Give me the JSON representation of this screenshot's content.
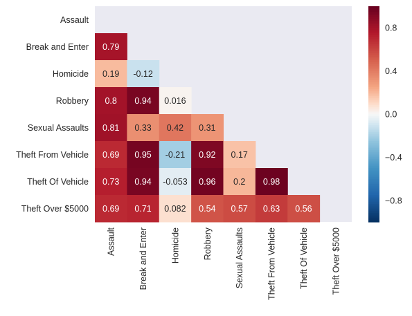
{
  "chart_data": {
    "type": "heatmap",
    "title": "",
    "xlabel": "",
    "ylabel": "",
    "mask": "upper-triangle-including-diagonal",
    "rows": [
      "Assault",
      "Break and Enter",
      "Homicide",
      "Robbery",
      "Sexual Assaults",
      "Theft From Vehicle",
      "Theft Of Vehicle",
      "Theft Over $5000"
    ],
    "columns": [
      "Assault",
      "Break and Enter",
      "Homicide",
      "Robbery",
      "Sexual Assaults",
      "Theft From Vehicle",
      "Theft Of Vehicle",
      "Theft Over $5000"
    ],
    "values": [
      [
        null,
        null,
        null,
        null,
        null,
        null,
        null,
        null
      ],
      [
        0.79,
        null,
        null,
        null,
        null,
        null,
        null,
        null
      ],
      [
        0.19,
        -0.12,
        null,
        null,
        null,
        null,
        null,
        null
      ],
      [
        0.8,
        0.94,
        0.016,
        null,
        null,
        null,
        null,
        null
      ],
      [
        0.81,
        0.33,
        0.42,
        0.31,
        null,
        null,
        null,
        null
      ],
      [
        0.69,
        0.95,
        -0.21,
        0.92,
        0.17,
        null,
        null,
        null
      ],
      [
        0.73,
        0.94,
        -0.053,
        0.96,
        0.2,
        0.98,
        null,
        null
      ],
      [
        0.69,
        0.71,
        0.082,
        0.54,
        0.57,
        0.63,
        0.56,
        null
      ]
    ],
    "labels": [
      [
        null,
        null,
        null,
        null,
        null,
        null,
        null,
        null
      ],
      [
        "0.79",
        null,
        null,
        null,
        null,
        null,
        null,
        null
      ],
      [
        "0.19",
        "-0.12",
        null,
        null,
        null,
        null,
        null,
        null
      ],
      [
        "0.8",
        "0.94",
        "0.016",
        null,
        null,
        null,
        null,
        null
      ],
      [
        "0.81",
        "0.33",
        "0.42",
        "0.31",
        null,
        null,
        null,
        null
      ],
      [
        "0.69",
        "0.95",
        "-0.21",
        "0.92",
        "0.17",
        null,
        null,
        null
      ],
      [
        "0.73",
        "0.94",
        "-0.053",
        "0.96",
        "0.2",
        "0.98",
        null,
        null
      ],
      [
        "0.69",
        "0.71",
        "0.082",
        "0.54",
        "0.57",
        "0.63",
        "0.56",
        null
      ]
    ],
    "colorscale": {
      "name": "RdBu_r",
      "vmin": -1,
      "vmax": 1,
      "ticks": [
        0.8,
        0.4,
        0.0,
        -0.4,
        -0.8
      ],
      "tick_labels": [
        "0.8",
        "0.4",
        "0.0",
        "−0.4",
        "−0.8"
      ]
    },
    "colors": {
      "background": "#eaeaf2",
      "text_dark": "#262626",
      "text_light": "#ffffff"
    }
  }
}
